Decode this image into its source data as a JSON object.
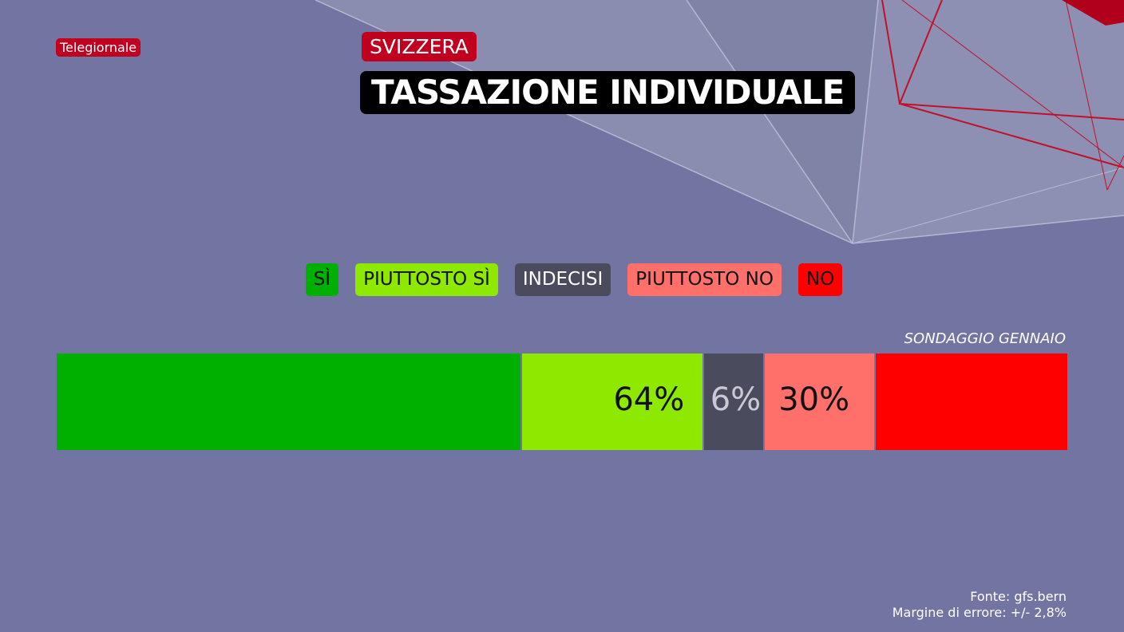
{
  "channel": "Telegiornale",
  "kicker": "SVIZZERA",
  "title": "TASSAZIONE INDIVIDUALE",
  "chart_data": {
    "type": "bar",
    "orientation": "horizontal-stacked",
    "subtitle": "SONDAGGIO GENNAIO",
    "series": [
      {
        "name": "SÌ",
        "value": 46,
        "color": "#00b000"
      },
      {
        "name": "PIUTTOSTO SÌ",
        "value": 18,
        "color": "#8ee800"
      },
      {
        "name": "INDECISI",
        "value": 6,
        "color": "#4a4c5e"
      },
      {
        "name": "PIUTTOSTO NO",
        "value": 11,
        "color": "#ff706b"
      },
      {
        "name": "NO",
        "value": 19,
        "color": "#ff0000"
      }
    ],
    "totals": [
      {
        "label": "64%",
        "value": 64
      },
      {
        "label": "6%",
        "value": 6
      },
      {
        "label": "30%",
        "value": 30
      }
    ],
    "xlim": [
      0,
      100
    ],
    "legend": "top"
  },
  "footer": {
    "source": "Fonte: gfs.bern",
    "margin": "Margine di errore: +/- 2,8%"
  }
}
